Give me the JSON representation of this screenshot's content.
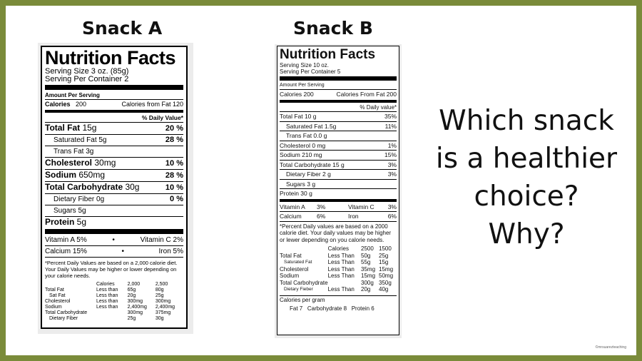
{
  "slide": {
    "snack_a_title": "Snack A",
    "snack_b_title": "Snack B",
    "question": [
      "Which snack",
      "is a healthier",
      "choice?",
      "Why?"
    ],
    "credit": "©mrsuarezteaching",
    "colors": {
      "border": "#7a8b3a",
      "background": "#ffffff",
      "text": "#111111"
    }
  },
  "label_a": {
    "title": "Nutrition Facts",
    "serving_size": "Serving Size 3 oz. (85g)",
    "servings": "Serving Per Container 2",
    "amount_per_serving": "Amount Per Serving",
    "calories_label": "Calories",
    "calories": "200",
    "calories_fat": "Calories from Fat 120",
    "dv_header": "% Daily Value*",
    "rows": [
      {
        "name": "Total Fat",
        "amount": "15g",
        "dv": "20 %",
        "bold": true,
        "indent": false
      },
      {
        "name": "Saturated Fat",
        "amount": "5g",
        "dv": "28 %",
        "bold": false,
        "indent": true
      },
      {
        "name": "Trans Fat",
        "amount": "3g",
        "dv": "",
        "bold": false,
        "indent": true
      },
      {
        "name": "Cholesterol",
        "amount": "30mg",
        "dv": "10 %",
        "bold": true,
        "indent": false
      },
      {
        "name": "Sodium",
        "amount": "650mg",
        "dv": "28 %",
        "bold": true,
        "indent": false
      },
      {
        "name": "Total Carbohydrate",
        "amount": "30g",
        "dv": "10 %",
        "bold": true,
        "indent": false
      },
      {
        "name": "Dietary Fiber",
        "amount": "0g",
        "dv": "0 %",
        "bold": false,
        "indent": true
      },
      {
        "name": "Sugars",
        "amount": "5g",
        "dv": "",
        "bold": false,
        "indent": true
      },
      {
        "name": "Protein",
        "amount": "5g",
        "dv": "",
        "bold": true,
        "indent": false
      }
    ],
    "vitamins": [
      {
        "left": "Vitamin A 5%",
        "right": "Vitamin C 2%"
      },
      {
        "left": "Calcium 15%",
        "right": "Iron 5%"
      }
    ],
    "bullet": "•",
    "footnote": "*Percent Daily Values are based on a 2,000 calorie diet. Your Daily Values may be higher or lower depending on your calorie needs.",
    "footer_table": {
      "header": [
        "",
        "Calories",
        "2,000",
        "2,500"
      ],
      "rows": [
        [
          "Total Fat",
          "Less than",
          "65g",
          "80g"
        ],
        [
          "Sat Fat",
          "Less than",
          "20g",
          "25g"
        ],
        [
          "Cholesterol",
          "Less than",
          "300mg",
          "300mg"
        ],
        [
          "Sodium",
          "Less than",
          "2,400mg",
          "2,400mg"
        ],
        [
          "Total Carbohydrate",
          "",
          "300mg",
          "375mg"
        ],
        [
          "Dietary Fiber",
          "",
          "25g",
          "30g"
        ]
      ]
    }
  },
  "label_b": {
    "title": "Nutrition Facts",
    "serving_size": "Serving Size 10 oz.",
    "servings": "Serving Per Container 5",
    "amount_per_serving": "Amount Per Serving",
    "calories": "Calories 200",
    "calories_fat": "Calories From Fat 200",
    "dv_header": "% Daily value*",
    "rows": [
      {
        "name": "Total Fat  10 g",
        "dv": "35%",
        "indent": false
      },
      {
        "name": "Saturated Fat 1.5g",
        "dv": "11%",
        "indent": true
      },
      {
        "name": "Trans Fat 0.0 g",
        "dv": "",
        "indent": true
      },
      {
        "name": "Cholesterol  0 mg",
        "dv": "1%",
        "indent": false
      },
      {
        "name": "Sodium    210 mg",
        "dv": "15%",
        "indent": false
      },
      {
        "name": "Total Carbohydrate    15 g",
        "dv": "3%",
        "indent": false
      },
      {
        "name": "Dietary Fiber   2 g",
        "dv": "3%",
        "indent": true
      },
      {
        "name": "Sugars   3 g",
        "dv": "",
        "indent": true
      },
      {
        "name": "Protein   30 g",
        "dv": "",
        "indent": false
      }
    ],
    "vitamins": [
      [
        "Vitamin A",
        "3%",
        "Vitamin C",
        "3%"
      ],
      [
        "Calcium",
        "6%",
        "Iron",
        "6%"
      ]
    ],
    "footnote": "*Percent Daily values are based on a 2000 calorie diet. Your daily values may be higher or lewer depending on you calorie needs.",
    "footer_table": {
      "header": [
        "",
        "Calories",
        "2500",
        "1500"
      ],
      "rows": [
        [
          "Total Fat",
          "Less Than",
          "50g",
          "25g"
        ],
        [
          "Saturated Fat",
          "Less Than",
          "55g",
          "15g"
        ],
        [
          "Cholesterol",
          "Less Than",
          "35mg",
          "15mg"
        ],
        [
          "Sodium",
          "Less Than",
          "15mg",
          "50mg"
        ],
        [
          "Total Carbohydrate",
          "",
          "300g",
          "350g"
        ],
        [
          "Dietary Fieber",
          "Less Than",
          "20g",
          "40g"
        ]
      ]
    },
    "cal_per_gram": "Calories per gram",
    "cal_per_gram_values": "Fat 7   Carbohydrate 8   Protein 6"
  }
}
